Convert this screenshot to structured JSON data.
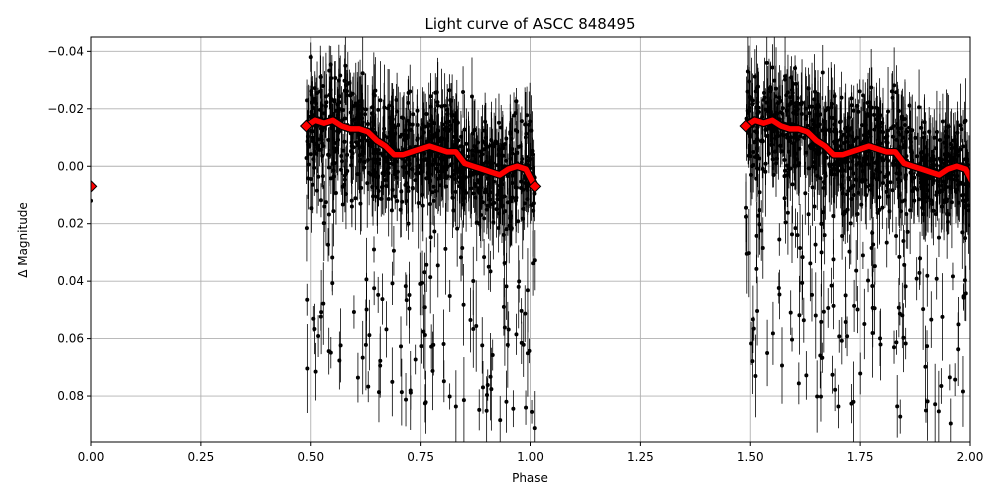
{
  "chart_data": {
    "type": "scatter",
    "title": "Light curve of ASCC 848495",
    "xlabel": "Phase",
    "ylabel": "Δ Magnitude",
    "xlim": [
      0.0,
      2.0
    ],
    "ylim": [
      0.096,
      -0.045
    ],
    "y_inverted": true,
    "grid": true,
    "x_ticks": [
      "0.00",
      "0.25",
      "0.50",
      "0.75",
      "1.00",
      "1.25",
      "1.50",
      "1.75",
      "2.00"
    ],
    "x_tick_values": [
      0.0,
      0.25,
      0.5,
      0.75,
      1.0,
      1.25,
      1.5,
      1.75,
      2.0
    ],
    "y_ticks": [
      "−0.04",
      "−0.02",
      "0.00",
      "0.02",
      "0.04",
      "0.06",
      "0.08"
    ],
    "y_tick_values": [
      -0.04,
      -0.02,
      0.0,
      0.02,
      0.04,
      0.06,
      0.08
    ],
    "series": [
      {
        "kind": "errorbar-scatter",
        "color": "#000000",
        "phase_ranges": [
          [
            0.49,
            1.01
          ],
          [
            1.49,
            2.0
          ]
        ],
        "mag_range": [
          -0.045,
          0.096
        ],
        "outliers": [
          {
            "x": 0.0,
            "y": 0.012
          }
        ]
      },
      {
        "kind": "binned-line",
        "color": "#ff0000",
        "edge_color": "#000000",
        "x": [
          0.49,
          0.51,
          0.53,
          0.55,
          0.57,
          0.59,
          0.61,
          0.63,
          0.65,
          0.67,
          0.69,
          0.71,
          0.73,
          0.75,
          0.77,
          0.79,
          0.81,
          0.83,
          0.85,
          0.87,
          0.89,
          0.91,
          0.93,
          0.95,
          0.97,
          0.99,
          1.01
        ],
        "y": [
          -0.014,
          -0.016,
          -0.015,
          -0.016,
          -0.014,
          -0.013,
          -0.013,
          -0.012,
          -0.009,
          -0.007,
          -0.004,
          -0.004,
          -0.005,
          -0.006,
          -0.007,
          -0.006,
          -0.005,
          -0.005,
          -0.001,
          0.0,
          0.001,
          0.002,
          0.003,
          0.001,
          0.0,
          0.001,
          0.007
        ]
      }
    ]
  }
}
